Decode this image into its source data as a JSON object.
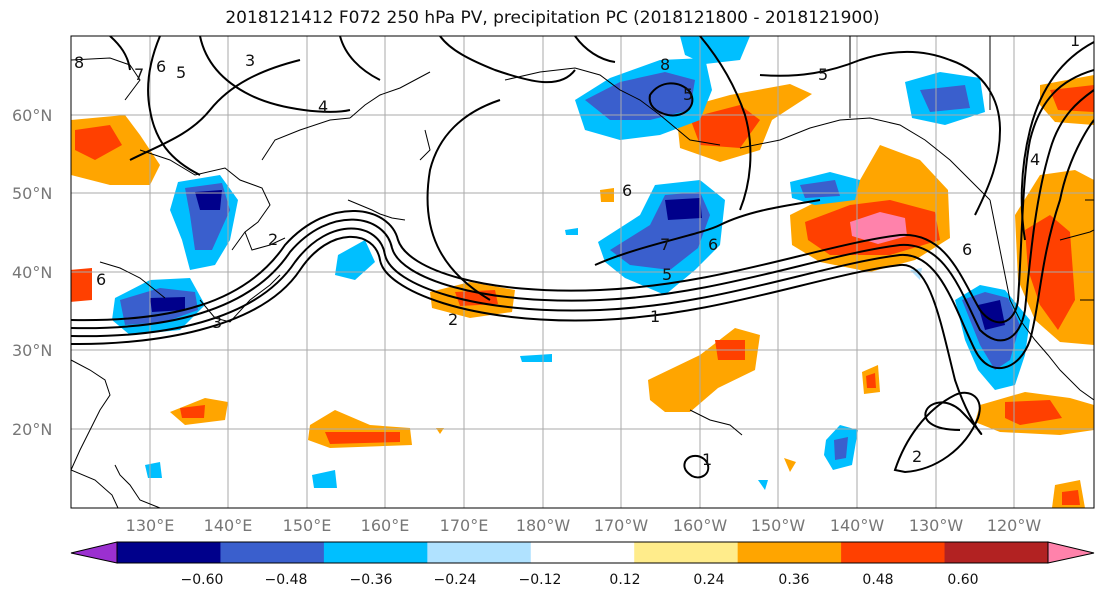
{
  "title": "2018121412 F072 250 hPa PV, precipitation PC (2018121800 - 2018121900)",
  "map": {
    "lon_ticks": [
      "130°E",
      "140°E",
      "150°E",
      "160°E",
      "170°E",
      "180°W",
      "170°W",
      "160°W",
      "150°W",
      "140°W",
      "130°W",
      "120°W"
    ],
    "lat_ticks": [
      "60°N",
      "50°N",
      "40°N",
      "30°N",
      "20°N"
    ],
    "grid": true,
    "contour_labels": [
      "8",
      "7",
      "6",
      "5",
      "3",
      "4",
      "8",
      "5",
      "5",
      "6",
      "2",
      "6",
      "3",
      "1",
      "7",
      "6",
      "5",
      "1",
      "2",
      "6",
      "4",
      "2",
      "1"
    ]
  },
  "colorbar": {
    "tick_labels": [
      "−0.60",
      "−0.48",
      "−0.36",
      "−0.24",
      "−0.12",
      "0.12",
      "0.24",
      "0.36",
      "0.48",
      "0.60"
    ],
    "colors": [
      "#9b30d0",
      "#00008b",
      "#3a5fcd",
      "#00bfff",
      "#b0e2ff",
      "#ffffff",
      "#ffec8b",
      "#ffa500",
      "#ff4000",
      "#b22222",
      "#ff82ab"
    ]
  }
}
